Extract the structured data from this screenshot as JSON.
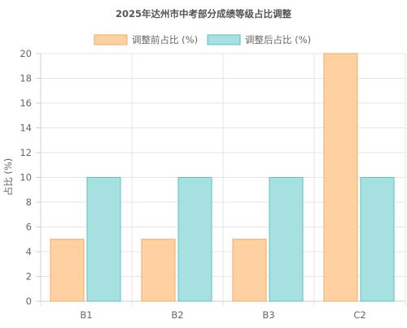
{
  "chart_data": {
    "type": "bar",
    "title": "2025年达州市中考部分成绩等级占比调整",
    "xlabel": "",
    "ylabel": "占比 (%)",
    "categories": [
      "B1",
      "B2",
      "B3",
      "C2"
    ],
    "series": [
      {
        "name": "调整前占比 (%)",
        "values": [
          5,
          5,
          5,
          20
        ],
        "fill": "#ffd0a0",
        "stroke": "#f0a860"
      },
      {
        "name": "调整后占比 (%)",
        "values": [
          10,
          10,
          10,
          10
        ],
        "fill": "#a6e0e0",
        "stroke": "#5cc2c2"
      }
    ],
    "ylim": [
      0,
      20
    ],
    "yticks": [
      0,
      2,
      4,
      6,
      8,
      10,
      12,
      14,
      16,
      18,
      20
    ],
    "grid": true,
    "legend_position": "top"
  }
}
